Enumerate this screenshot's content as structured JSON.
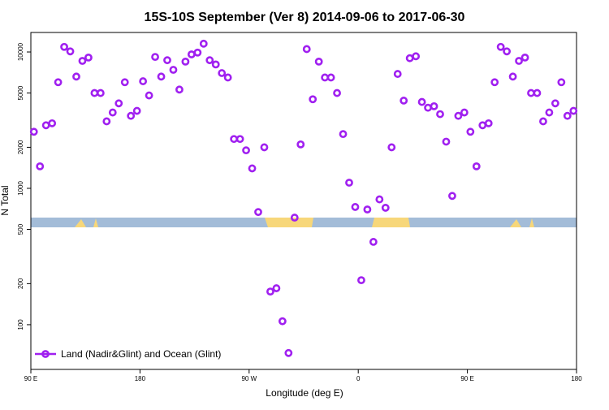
{
  "chart_data": {
    "type": "scatter",
    "title": "15S-10S September (Ver 8)   2014-09-06 to 2017-06-30",
    "x_label": "Longitude (deg E)",
    "y_label": "N Total",
    "log_y": true,
    "xlim": [
      90,
      540
    ],
    "ylim": [
      47,
      13900
    ],
    "xticks": [
      {
        "value": 90,
        "label": "90 E"
      },
      180,
      {
        "value": 270,
        "label": "90 W"
      },
      {
        "value": 360,
        "label": "0"
      },
      {
        "value": 450,
        "label": "90 E"
      },
      {
        "value": 540,
        "label": "180"
      }
    ],
    "yticks": [
      100,
      200,
      500,
      1000,
      2000,
      5000,
      10000
    ],
    "legend_position": "bottom-left",
    "series": [
      {
        "name": "Land (Nadir&Glint) and Ocean (Glint)",
        "color": "#a020f0",
        "x": [
          92.5,
          97.5,
          102.5,
          107.5,
          112.5,
          117.5,
          122.5,
          127.5,
          132.5,
          137.5,
          142.5,
          147.5,
          152.5,
          157.5,
          162.5,
          167.5,
          172.5,
          177.5,
          182.5,
          187.5,
          192.5,
          197.5,
          202.5,
          207.5,
          212.5,
          217.5,
          222.5,
          227.5,
          232.5,
          237.5,
          242.5,
          247.5,
          252.5,
          257.5,
          262.5,
          267.5,
          272.5,
          277.5,
          282.5,
          287.5,
          292.5,
          297.5,
          302.5,
          307.5,
          312.5,
          317.5,
          322.5,
          327.5,
          332.5,
          337.5,
          342.5,
          347.5,
          352.5,
          357.5,
          362.5,
          367.5,
          372.5,
          377.5,
          382.5,
          387.5,
          392.5,
          397.5,
          402.5,
          407.5,
          412.5,
          417.5,
          422.5,
          427.5,
          432.5,
          437.5,
          442.5,
          447.5,
          452.5,
          457.5,
          462.5,
          467.5,
          472.5,
          477.5,
          482.5,
          487.5,
          492.5,
          497.5,
          502.5,
          507.5,
          512.5,
          517.5,
          522.5,
          527.5,
          532.5,
          537.5
        ],
        "values": [
          2600,
          1450,
          2900,
          3000,
          6000,
          10900,
          10100,
          6600,
          8600,
          9100,
          5000,
          5000,
          3100,
          3600,
          4200,
          6000,
          3400,
          3700,
          6100,
          4800,
          9200,
          6600,
          8700,
          7400,
          5300,
          8500,
          9600,
          9900,
          11500,
          8700,
          8100,
          7000,
          6500,
          2300,
          2300,
          1900,
          1400,
          670,
          2000,
          175,
          185,
          106,
          62,
          610,
          2100,
          10500,
          4500,
          8500,
          6500,
          6500,
          5000,
          2500,
          1100,
          730,
          212,
          700,
          405,
          830,
          720,
          2000,
          6900,
          4400,
          9000,
          9300,
          4300,
          3900,
          4000,
          3500,
          2200,
          880,
          3400,
          3600,
          2600,
          1450,
          2900,
          3000,
          6000,
          10900,
          10100,
          6600,
          8600,
          9100,
          5000,
          5000,
          3100,
          3600,
          4200,
          6000,
          3400,
          3700
        ]
      }
    ]
  }
}
